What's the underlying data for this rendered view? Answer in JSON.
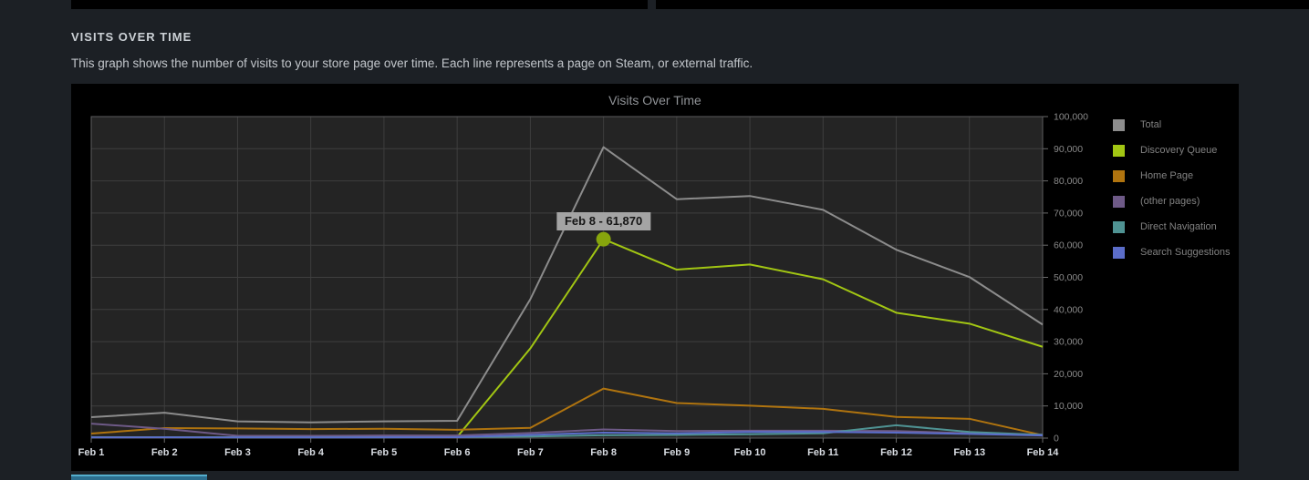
{
  "page": {
    "section_title": "VISITS OVER TIME",
    "section_description": "This graph shows the number of visits to your store page over time. Each line represents a page on Steam, or external traffic."
  },
  "chart_data": {
    "type": "line",
    "title": "Visits Over Time",
    "x": [
      "Feb 1",
      "Feb 2",
      "Feb 3",
      "Feb 4",
      "Feb 5",
      "Feb 6",
      "Feb 7",
      "Feb 8",
      "Feb 9",
      "Feb 10",
      "Feb 11",
      "Feb 12",
      "Feb 13",
      "Feb 14"
    ],
    "series": [
      {
        "name": "Total",
        "color": "#8c8c8c",
        "values": [
          6500,
          7900,
          5200,
          4900,
          5200,
          5400,
          43200,
          90500,
          74300,
          75300,
          71000,
          58600,
          50100,
          35300
        ]
      },
      {
        "name": "Discovery Queue",
        "color": "#a2c613",
        "values": [
          250,
          300,
          250,
          250,
          300,
          350,
          27900,
          61870,
          52400,
          54000,
          49400,
          39000,
          35600,
          28400
        ]
      },
      {
        "name": "Home Page",
        "color": "#b0740f",
        "values": [
          1400,
          3100,
          3000,
          2800,
          2900,
          2600,
          3200,
          15400,
          10900,
          10100,
          9100,
          6600,
          6000,
          900
        ]
      },
      {
        "name": "(other pages)",
        "color": "#6e5a87",
        "values": [
          4500,
          2900,
          700,
          700,
          800,
          800,
          1600,
          2700,
          2200,
          2300,
          2300,
          2200,
          1500,
          1100
        ]
      },
      {
        "name": "Direct Navigation",
        "color": "#4f9393",
        "values": [
          300,
          300,
          250,
          250,
          250,
          300,
          500,
          900,
          1000,
          1200,
          1500,
          4000,
          1900,
          1000
        ]
      },
      {
        "name": "Search Suggestions",
        "color": "#5b6dc9",
        "values": [
          200,
          250,
          200,
          200,
          250,
          300,
          1000,
          1700,
          1500,
          1900,
          1900,
          1700,
          1300,
          800
        ]
      }
    ],
    "ylim": [
      0,
      100000
    ],
    "y_tick_step": 10000,
    "y_ticks": [
      "0",
      "10,000",
      "20,000",
      "30,000",
      "40,000",
      "50,000",
      "60,000",
      "70,000",
      "80,000",
      "90,000",
      "100,000"
    ],
    "grid": true,
    "legend_position": "right",
    "plot_bg": "#242424",
    "grid_color": "#3e3e3e",
    "border_color": "#5c5c5e",
    "tick_color": "#6a6a6a",
    "x_label_color": "#d8dce2",
    "y_label_color": "#8a8a8a",
    "tooltip": {
      "label": "Feb 8 - 61,870",
      "series": "Discovery Queue",
      "series_index": 1,
      "point_index": 7,
      "value": 61870,
      "dot_color": "#87a50d"
    }
  },
  "footer": {
    "button_accent": "#54aecd"
  }
}
